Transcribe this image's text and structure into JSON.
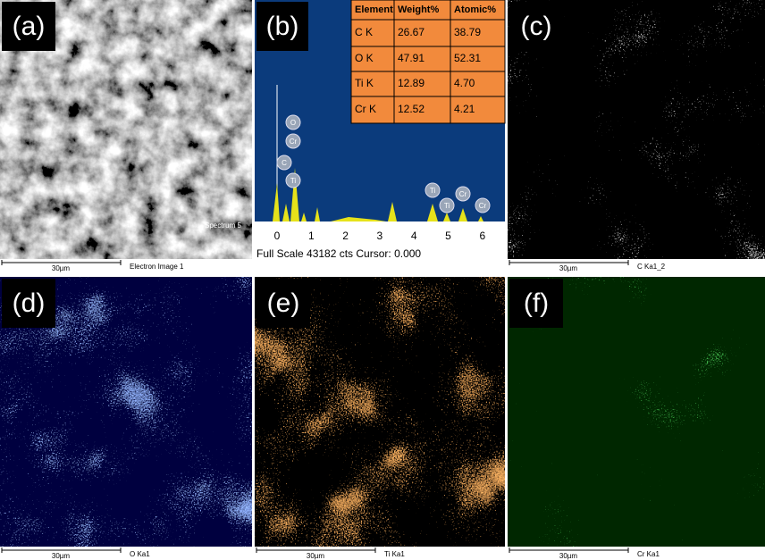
{
  "panels": [
    {
      "label": "(a)",
      "scale_bar": "30µm",
      "caption": "Electron Image 1",
      "annotation": "Spectrum 5"
    },
    {
      "label": "(b)",
      "table": {
        "header": [
          "Element",
          "Weight%",
          "Atomic%"
        ],
        "rows": [
          [
            "C K",
            "26.67",
            "38.79"
          ],
          [
            "O K",
            "47.91",
            "52.31"
          ],
          [
            "Ti K",
            "12.89",
            "4.70"
          ],
          [
            "Cr K",
            "12.52",
            "4.21"
          ]
        ]
      },
      "peak_labels": [
        "O",
        "Cr",
        "C",
        "Ti",
        "Ti",
        "Ti",
        "Cr",
        "Cr"
      ],
      "x_ticks": [
        0,
        1,
        2,
        3,
        4,
        5,
        6
      ],
      "footer": "Full Scale 43182 cts Cursor: 0.000"
    },
    {
      "label": "(c)",
      "scale_bar": "30µm",
      "caption": "C Ka1_2"
    },
    {
      "label": "(d)",
      "scale_bar": "30µm",
      "caption": "O Ka1"
    },
    {
      "label": "(e)",
      "scale_bar": "30µm",
      "caption": "Ti Ka1"
    },
    {
      "label": "(f)",
      "scale_bar": "30µm",
      "caption": "Cr Ka1"
    }
  ]
}
